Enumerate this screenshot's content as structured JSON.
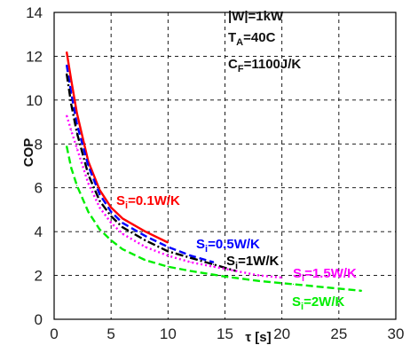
{
  "chart_data": {
    "type": "line",
    "title": "",
    "xlabel": "τ [s]",
    "ylabel": "COP",
    "xlim": [
      0,
      30
    ],
    "ylim": [
      0,
      14
    ],
    "xticks": [
      "0",
      "5",
      "10",
      "15",
      "20",
      "25",
      "30"
    ],
    "yticks": [
      "0",
      "2",
      "4",
      "6",
      "8",
      "10",
      "12",
      "14"
    ],
    "grid": true,
    "annotations": [
      {
        "parts": [
          {
            "t": "|W|=1kW"
          }
        ]
      },
      {
        "parts": [
          {
            "t": "T"
          },
          {
            "t": "A",
            "sub": true
          },
          {
            "t": "=40C"
          }
        ]
      },
      {
        "parts": [
          {
            "t": "C"
          },
          {
            "t": "F",
            "sub": true
          },
          {
            "t": "=1100J/K"
          }
        ]
      }
    ],
    "series": [
      {
        "name": "Si=0.1W/K",
        "label_parts": [
          {
            "t": "S"
          },
          {
            "t": "i",
            "sub": true
          },
          {
            "t": "=0.1W/K"
          }
        ],
        "color": "#ff0000",
        "dash": "solid",
        "x": [
          1.1,
          1.5,
          2,
          3,
          4,
          5,
          6,
          8,
          10
        ],
        "y": [
          12.2,
          10.9,
          9.4,
          7.2,
          5.9,
          5.1,
          4.6,
          4.0,
          3.5
        ]
      },
      {
        "name": "Si=0.5W/K",
        "label_parts": [
          {
            "t": "S"
          },
          {
            "t": "i",
            "sub": true
          },
          {
            "t": "=0.5W/K"
          }
        ],
        "color": "#0000ff",
        "dash": "dashed",
        "x": [
          1.1,
          1.5,
          2,
          3,
          4,
          5,
          6,
          8,
          10,
          12,
          14
        ],
        "y": [
          11.6,
          10.3,
          8.9,
          7.0,
          5.7,
          4.9,
          4.4,
          3.8,
          3.3,
          2.9,
          2.6
        ]
      },
      {
        "name": "Si=1W/K",
        "label_parts": [
          {
            "t": "S"
          },
          {
            "t": "i",
            "sub": true
          },
          {
            "t": "=1W/K"
          }
        ],
        "color": "#000000",
        "dash": "dashdot",
        "x": [
          1.1,
          1.5,
          2,
          3,
          4,
          5,
          6,
          8,
          10,
          12,
          14,
          16
        ],
        "y": [
          11.2,
          9.8,
          8.5,
          6.6,
          5.4,
          4.7,
          4.2,
          3.6,
          3.1,
          2.8,
          2.5,
          2.2
        ]
      },
      {
        "name": "Si=1.5W/K",
        "label_parts": [
          {
            "t": "S"
          },
          {
            "t": "i",
            "sub": true
          },
          {
            "t": "=1.5W/K"
          }
        ],
        "color": "#ff00ff",
        "dash": "dotted",
        "x": [
          1.1,
          1.5,
          2,
          3,
          4,
          5,
          6,
          8,
          10,
          12,
          14,
          16,
          18,
          20
        ],
        "y": [
          9.3,
          8.6,
          7.8,
          6.2,
          5.1,
          4.4,
          3.9,
          3.3,
          2.9,
          2.6,
          2.4,
          2.2,
          2.0,
          1.9
        ]
      },
      {
        "name": "Si=2W/K",
        "label_parts": [
          {
            "t": "S"
          },
          {
            "t": "i",
            "sub": true
          },
          {
            "t": "=2W/K"
          }
        ],
        "color": "#00ee00",
        "dash": "dashed",
        "x": [
          1.1,
          1.5,
          2,
          3,
          4,
          5,
          6,
          8,
          10,
          12,
          15,
          18,
          21,
          24,
          27
        ],
        "y": [
          7.9,
          6.9,
          6.1,
          4.9,
          4.1,
          3.6,
          3.2,
          2.7,
          2.4,
          2.2,
          1.95,
          1.75,
          1.6,
          1.45,
          1.3
        ]
      }
    ]
  }
}
